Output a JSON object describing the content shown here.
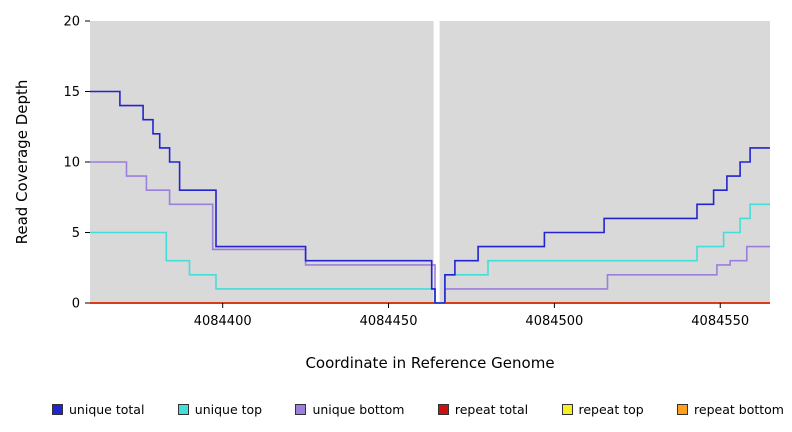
{
  "chart_data": {
    "type": "line",
    "step": "after",
    "title": "",
    "xlabel": "Coordinate in Reference Genome",
    "ylabel": "Read Coverage Depth",
    "xlim": [
      4084360,
      4084565
    ],
    "ylim": [
      0,
      20
    ],
    "x_ticks": [
      4084400,
      4084450,
      4084500,
      4084550
    ],
    "y_ticks": [
      0,
      5,
      10,
      15,
      20
    ],
    "panel_color": "#d9d9d9",
    "grid": false,
    "legend_position": "bottom",
    "gap_band": {
      "x_start": 4084463.6,
      "x_end": 4084465.4,
      "color": "#ffffff"
    },
    "series": [
      {
        "name": "unique total",
        "color": "#2323cf",
        "points": [
          [
            4084360,
            15
          ],
          [
            4084369,
            14
          ],
          [
            4084376,
            13
          ],
          [
            4084379,
            12
          ],
          [
            4084381,
            11
          ],
          [
            4084384,
            10
          ],
          [
            4084387,
            8
          ],
          [
            4084398,
            4
          ],
          [
            4084425,
            3
          ],
          [
            4084463,
            1
          ],
          [
            4084464,
            0
          ],
          [
            4084467,
            2
          ],
          [
            4084470,
            3
          ],
          [
            4084477,
            4
          ],
          [
            4084497,
            5
          ],
          [
            4084515,
            6
          ],
          [
            4084543,
            7
          ],
          [
            4084548,
            8
          ],
          [
            4084552,
            9
          ],
          [
            4084556,
            10
          ],
          [
            4084559,
            11
          ]
        ]
      },
      {
        "name": "unique top",
        "color": "#45ddd8",
        "points": [
          [
            4084360,
            5
          ],
          [
            4084383,
            3
          ],
          [
            4084390,
            2
          ],
          [
            4084398,
            1
          ],
          [
            4084464,
            0
          ],
          [
            4084467,
            2
          ],
          [
            4084480,
            3
          ],
          [
            4084543,
            4
          ],
          [
            4084551,
            5
          ],
          [
            4084556,
            6
          ],
          [
            4084559,
            7
          ]
        ]
      },
      {
        "name": "unique bottom",
        "color": "#9b7fdc",
        "points": [
          [
            4084360,
            10
          ],
          [
            4084371,
            9
          ],
          [
            4084377,
            8
          ],
          [
            4084384,
            7
          ],
          [
            4084397,
            3.8
          ],
          [
            4084425,
            2.7
          ],
          [
            4084464,
            0
          ],
          [
            4084467,
            1
          ],
          [
            4084516,
            2
          ],
          [
            4084549,
            2.7
          ],
          [
            4084553,
            3
          ],
          [
            4084558,
            4
          ]
        ]
      },
      {
        "name": "repeat total",
        "color": "#cc1111",
        "points": [
          [
            4084360,
            0
          ]
        ]
      },
      {
        "name": "repeat top",
        "color": "#f5ef2a",
        "points": [
          [
            4084360,
            0
          ]
        ]
      },
      {
        "name": "repeat bottom",
        "color": "#ff9f1a",
        "points": [
          [
            4084360,
            0
          ]
        ]
      }
    ]
  }
}
